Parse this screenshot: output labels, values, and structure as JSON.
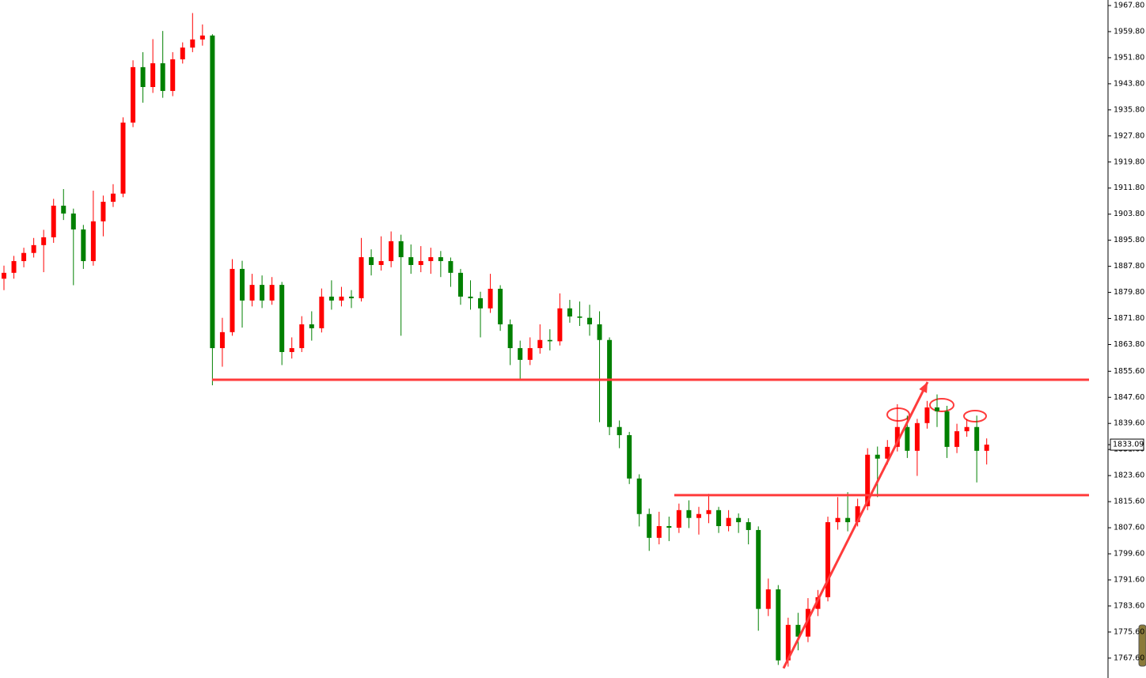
{
  "chart_data": {
    "type": "candlestick",
    "up_color": "#ff0000",
    "down_color": "#008000",
    "level_color": "#ff3b3b",
    "ylim": [
      1761.5,
      1969.5
    ],
    "yticks": [
      {
        "value": 1967.8,
        "label": "1967.80"
      },
      {
        "value": 1959.8,
        "label": "1959.80"
      },
      {
        "value": 1951.8,
        "label": "1951.80"
      },
      {
        "value": 1943.8,
        "label": "1943.80"
      },
      {
        "value": 1935.8,
        "label": "1935.80"
      },
      {
        "value": 1927.8,
        "label": "1927.80"
      },
      {
        "value": 1919.8,
        "label": "1919.80"
      },
      {
        "value": 1911.8,
        "label": "1911.80"
      },
      {
        "value": 1903.8,
        "label": "1903.80"
      },
      {
        "value": 1895.8,
        "label": "1895.80"
      },
      {
        "value": 1887.8,
        "label": "1887.80"
      },
      {
        "value": 1879.8,
        "label": "1879.80"
      },
      {
        "value": 1871.8,
        "label": "1871.80"
      },
      {
        "value": 1863.8,
        "label": "1863.80"
      },
      {
        "value": 1855.6,
        "label": "1855.60"
      },
      {
        "value": 1847.6,
        "label": "1847.60"
      },
      {
        "value": 1839.6,
        "label": "1839.60"
      },
      {
        "value": 1831.6,
        "label": "1831.60"
      },
      {
        "value": 1823.6,
        "label": "1823.60"
      },
      {
        "value": 1815.6,
        "label": "1815.60"
      },
      {
        "value": 1807.6,
        "label": "1807.60"
      },
      {
        "value": 1799.6,
        "label": "1799.60"
      },
      {
        "value": 1791.6,
        "label": "1791.60"
      },
      {
        "value": 1783.6,
        "label": "1783.60"
      },
      {
        "value": 1775.6,
        "label": "1775.60"
      },
      {
        "value": 1767.6,
        "label": "1767.60"
      }
    ],
    "last_price": {
      "value": 1833.09,
      "label": "1833.09"
    },
    "levels": [
      1853.0,
      1817.6
    ],
    "trend_line": [
      1764.5,
      1852.3
    ],
    "open": [
      1884.0,
      1885.8,
      1889.4,
      1891.9,
      1894.3,
      1896.7,
      1906.4,
      1904.0,
      1899.1,
      1889.4,
      1901.6,
      1907.6,
      1910.1,
      1931.9,
      1948.9,
      1942.8,
      1950.1,
      1941.6,
      1951.3,
      1954.9,
      1957.4,
      1958.6,
      1862.7,
      1867.6,
      1887.0,
      1877.3,
      1882.1,
      1877.3,
      1882.1,
      1861.5,
      1862.7,
      1870.0,
      1868.8,
      1878.5,
      1877.3,
      1878.5,
      1878.0,
      1890.6,
      1888.2,
      1889.4,
      1895.5,
      1890.6,
      1888.2,
      1889.4,
      1890.6,
      1889.4,
      1885.8,
      1878.5,
      1878.0,
      1874.9,
      1880.9,
      1870.0,
      1862.7,
      1859.1,
      1862.7,
      1865.2,
      1864.8,
      1874.9,
      1872.4,
      1872.0,
      1870.0,
      1865.2,
      1838.5,
      1836.0,
      1822.7,
      1811.8,
      1804.5,
      1808.1,
      1807.6,
      1813.0,
      1810.6,
      1811.8,
      1813.0,
      1808.1,
      1810.6,
      1809.3,
      1806.9,
      1782.7,
      1788.7,
      1766.9,
      1777.8,
      1774.2,
      1782.7,
      1786.3,
      1809.3,
      1810.6,
      1809.3,
      1814.2,
      1830.0,
      1828.8,
      1832.4,
      1838.5,
      1831.2,
      1839.7,
      1844.5,
      1843.3,
      1832.4,
      1837.2,
      1838.5,
      1831.2
    ],
    "high": [
      1888.0,
      1891.0,
      1893.5,
      1896.5,
      1899.0,
      1908.5,
      1911.5,
      1905.5,
      1900.5,
      1911.0,
      1909.5,
      1913.0,
      1933.5,
      1951.0,
      1953.5,
      1957.5,
      1960.0,
      1953.5,
      1956.5,
      1965.5,
      1962.0,
      1959.0,
      1872.0,
      1890.0,
      1889.5,
      1885.5,
      1885.0,
      1884.5,
      1883.0,
      1866.0,
      1872.5,
      1874.0,
      1881.0,
      1883.5,
      1881.5,
      1880.5,
      1896.5,
      1893.0,
      1897.0,
      1898.5,
      1897.5,
      1894.5,
      1894.0,
      1893.5,
      1892.5,
      1890.5,
      1887.0,
      1883.5,
      1880.0,
      1885.5,
      1882.0,
      1871.5,
      1865.0,
      1866.0,
      1870.0,
      1868.5,
      1879.5,
      1877.5,
      1877.0,
      1876.0,
      1874.0,
      1866.0,
      1840.5,
      1837.0,
      1824.0,
      1813.5,
      1812.5,
      1811.0,
      1815.0,
      1816.0,
      1814.0,
      1818.0,
      1814.0,
      1813.0,
      1812.0,
      1810.5,
      1808.0,
      1792.0,
      1790.0,
      1780.0,
      1781.5,
      1786.0,
      1788.5,
      1811.0,
      1817.0,
      1818.5,
      1816.5,
      1832.0,
      1832.5,
      1834.5,
      1845.5,
      1842.0,
      1841.0,
      1846.5,
      1848.5,
      1845.0,
      1839.5,
      1841.0,
      1842.0,
      1835.0
    ],
    "low": [
      1880.5,
      1884.0,
      1887.5,
      1890.5,
      1886.0,
      1895.0,
      1902.0,
      1882.0,
      1887.0,
      1888.0,
      1897.0,
      1906.0,
      1909.0,
      1930.5,
      1938.0,
      1941.0,
      1939.5,
      1940.0,
      1950.0,
      1953.5,
      1955.5,
      1851.3,
      1857.0,
      1866.5,
      1869.0,
      1875.5,
      1875.0,
      1876.0,
      1857.5,
      1859.5,
      1861.5,
      1865.0,
      1867.5,
      1874.5,
      1875.5,
      1875.0,
      1877.0,
      1885.0,
      1886.5,
      1887.5,
      1866.5,
      1885.5,
      1886.0,
      1885.5,
      1884.5,
      1881.5,
      1876.0,
      1874.5,
      1866.0,
      1873.5,
      1868.0,
      1857.5,
      1853.0,
      1857.5,
      1861.0,
      1862.0,
      1863.5,
      1870.5,
      1869.5,
      1866.5,
      1840.0,
      1836.0,
      1832.0,
      1821.0,
      1808.0,
      1800.5,
      1802.5,
      1803.5,
      1806.0,
      1807.5,
      1805.5,
      1809.0,
      1806.0,
      1806.5,
      1806.0,
      1802.5,
      1776.0,
      1780.5,
      1765.5,
      1765.0,
      1770.0,
      1772.5,
      1780.5,
      1785.0,
      1807.0,
      1806.5,
      1808.0,
      1813.0,
      1817.0,
      1827.0,
      1831.0,
      1829.0,
      1823.5,
      1838.0,
      1838.5,
      1829.0,
      1830.5,
      1835.5,
      1821.5,
      1827.0
    ],
    "close": [
      1885.8,
      1889.4,
      1891.9,
      1894.3,
      1896.7,
      1906.4,
      1904.0,
      1899.1,
      1889.4,
      1901.6,
      1907.6,
      1910.1,
      1931.9,
      1948.9,
      1942.8,
      1950.1,
      1941.6,
      1951.3,
      1954.9,
      1957.4,
      1958.6,
      1862.7,
      1867.6,
      1887.0,
      1877.3,
      1882.1,
      1877.3,
      1882.1,
      1861.5,
      1862.7,
      1870.0,
      1868.8,
      1878.5,
      1877.3,
      1878.5,
      1878.0,
      1890.6,
      1888.2,
      1889.4,
      1895.5,
      1890.6,
      1888.2,
      1889.4,
      1890.6,
      1889.4,
      1885.8,
      1878.5,
      1878.0,
      1874.9,
      1880.9,
      1870.0,
      1862.7,
      1859.1,
      1862.7,
      1865.2,
      1864.8,
      1874.9,
      1872.4,
      1872.0,
      1870.0,
      1865.2,
      1838.5,
      1836.0,
      1822.7,
      1811.8,
      1804.5,
      1808.1,
      1807.6,
      1813.0,
      1810.6,
      1811.8,
      1813.0,
      1808.1,
      1810.6,
      1809.3,
      1806.9,
      1782.7,
      1788.7,
      1766.9,
      1777.8,
      1774.2,
      1782.7,
      1786.3,
      1809.3,
      1810.6,
      1809.3,
      1814.2,
      1830.0,
      1828.8,
      1832.4,
      1838.5,
      1831.2,
      1839.7,
      1844.5,
      1843.3,
      1832.4,
      1837.2,
      1838.5,
      1831.2,
      1833.1
    ]
  }
}
